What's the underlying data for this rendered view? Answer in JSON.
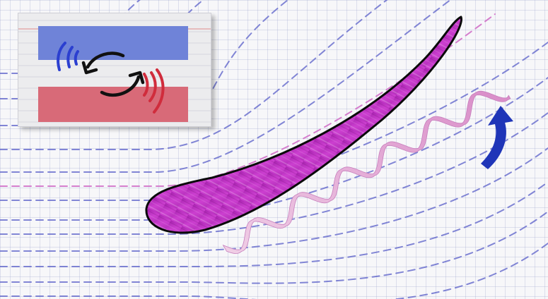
{
  "diagram": {
    "colors": {
      "background": "#f7f7f9",
      "grid": "#9aa0c8",
      "streamline_blue": "#5a5fc8",
      "streamline_pink": "#d070c8",
      "airfoil_fill": "#c23cc8",
      "airfoil_edge": "#0a0a0a",
      "vortex_ribbon": "#e2a6d8",
      "lift_arrow": "#1f35b8",
      "inset_blue_band": "#6f83d8",
      "inset_red_band": "#d86a78",
      "inset_blue_arc": "#2b3fd0",
      "inset_red_arc": "#d02c3c",
      "rotation_arrows": "#111111"
    },
    "icons": {
      "lift": "curved-up-arrow-icon",
      "rotation": "circular-arrows-icon"
    }
  }
}
